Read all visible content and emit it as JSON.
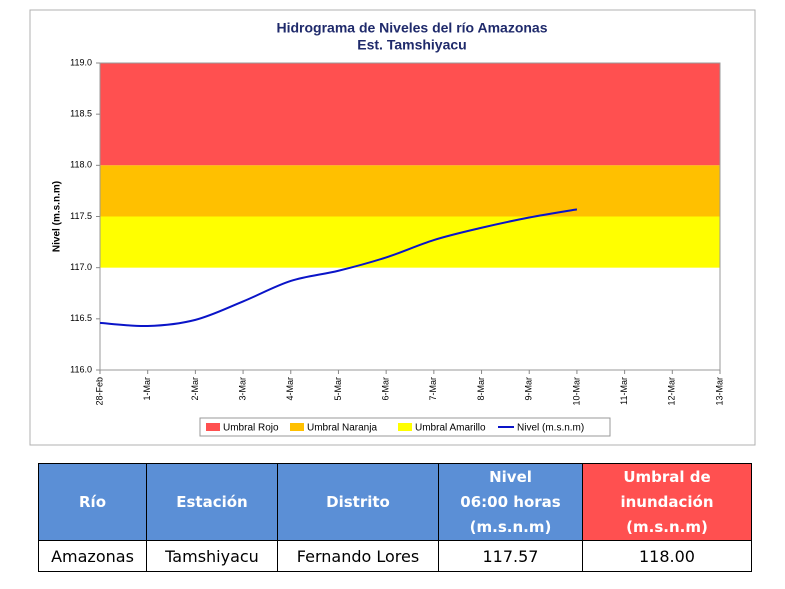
{
  "chart_data": {
    "type": "line",
    "title": [
      "Hidrograma de Niveles del río Amazonas",
      "Est. Tamshiyacu"
    ],
    "y_label": "Nivel (m.s.n.m)",
    "categories": [
      "28-Feb",
      "1-Mar",
      "2-Mar",
      "3-Mar",
      "4-Mar",
      "5-Mar",
      "6-Mar",
      "7-Mar",
      "8-Mar",
      "9-Mar",
      "10-Mar",
      "11-Mar",
      "12-Mar",
      "13-Mar"
    ],
    "bands": [
      {
        "name": "Umbral Rojo",
        "color": "#ff5050",
        "range": [
          118,
          119
        ]
      },
      {
        "name": "Umbral Naranja",
        "color": "#ffc000",
        "range": [
          117.5,
          118
        ]
      },
      {
        "name": "Umbral Amarillo",
        "color": "#ffff00",
        "range": [
          117,
          117.5
        ]
      }
    ],
    "series": [
      {
        "name": "Nivel (m.s.n.m)",
        "color": "#0a14c8",
        "values": [
          116.46,
          116.43,
          116.49,
          116.67,
          116.87,
          116.97,
          117.1,
          117.27,
          117.39,
          117.49,
          117.57,
          null,
          null,
          null
        ]
      }
    ],
    "ylim": [
      116,
      119
    ],
    "yticks": [
      {
        "value": 116,
        "label": "116.0"
      },
      116.5,
      {
        "value": 117,
        "label": "117.0"
      },
      117.5,
      {
        "value": 118,
        "label": "118.0"
      },
      118.5,
      {
        "value": 119,
        "label": "119.0"
      }
    ]
  },
  "table": {
    "headers": [
      [
        "Río"
      ],
      [
        "Estación"
      ],
      [
        "Distrito"
      ],
      [
        "Nivel",
        "06:00 horas",
        "(m.s.n.m)"
      ],
      [
        "Umbral de",
        "inundación",
        "(m.s.n.m)"
      ]
    ],
    "rows": [
      [
        "Amazonas",
        "Tamshiyacu",
        "Fernando Lores",
        "117.57",
        "118.00"
      ]
    ]
  }
}
